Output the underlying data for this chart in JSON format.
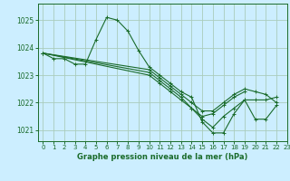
{
  "title": "Graphe pression niveau de la mer (hPa)",
  "background_color": "#cceeff",
  "grid_color": "#aaccbb",
  "line_color": "#1a6b2a",
  "xlim": [
    -0.5,
    23
  ],
  "ylim": [
    1020.6,
    1025.6
  ],
  "yticks": [
    1021,
    1022,
    1023,
    1024,
    1025
  ],
  "xticks": [
    0,
    1,
    2,
    3,
    4,
    5,
    6,
    7,
    8,
    9,
    10,
    11,
    12,
    13,
    14,
    15,
    16,
    17,
    18,
    19,
    20,
    21,
    22,
    23
  ],
  "series": [
    [
      1023.8,
      1023.6,
      1023.6,
      1023.4,
      1023.4,
      1024.3,
      1025.1,
      1025.0,
      1024.6,
      1023.9,
      1023.3,
      1023.0,
      1022.7,
      1022.4,
      1022.2,
      1021.3,
      1020.9,
      1020.9,
      1021.6,
      1022.1,
      1021.4,
      1021.4,
      1021.9,
      null
    ],
    [
      1023.8,
      null,
      null,
      null,
      null,
      null,
      null,
      null,
      null,
      null,
      1023.1,
      1022.8,
      1022.5,
      1022.2,
      1021.8,
      1021.4,
      1021.1,
      1021.5,
      1021.8,
      1022.1,
      1022.1,
      1022.1,
      1022.2,
      null
    ],
    [
      1023.8,
      null,
      null,
      null,
      null,
      null,
      null,
      null,
      null,
      null,
      1023.0,
      1022.7,
      1022.4,
      1022.1,
      1021.8,
      1021.5,
      1021.6,
      1021.9,
      1022.2,
      1022.4,
      null,
      null,
      null,
      null
    ],
    [
      1023.8,
      null,
      null,
      null,
      null,
      null,
      null,
      null,
      null,
      null,
      1023.2,
      1022.9,
      1022.6,
      1022.3,
      1022.0,
      1021.7,
      1021.7,
      1022.0,
      1022.3,
      1022.5,
      1022.4,
      1022.3,
      1022.0,
      null
    ]
  ]
}
